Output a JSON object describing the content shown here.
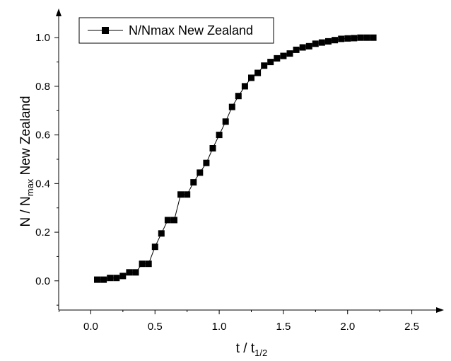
{
  "chart_data": {
    "type": "line",
    "xlabel": {
      "base": "t / t",
      "sub": "1/2"
    },
    "ylabel": {
      "pre": "N / N",
      "sub": "max",
      "post": " New Zealand"
    },
    "xlim": [
      -0.25,
      2.75
    ],
    "ylim": [
      -0.12,
      1.12
    ],
    "xticks": [
      "0.0",
      "0.5",
      "1.0",
      "1.5",
      "2.0",
      "2.5"
    ],
    "yticks": [
      "0.0",
      "0.2",
      "0.4",
      "0.6",
      "0.8",
      "1.0"
    ],
    "legend": {
      "position": "top-left",
      "marker": "square"
    },
    "grid": false,
    "series": [
      {
        "name": "N/Nmax New Zealand",
        "color": "#000000",
        "marker": "square",
        "x": [
          0.05,
          0.1,
          0.15,
          0.2,
          0.25,
          0.3,
          0.35,
          0.4,
          0.45,
          0.5,
          0.55,
          0.6,
          0.65,
          0.7,
          0.75,
          0.8,
          0.85,
          0.9,
          0.95,
          1.0,
          1.05,
          1.1,
          1.15,
          1.2,
          1.25,
          1.3,
          1.35,
          1.4,
          1.45,
          1.5,
          1.55,
          1.6,
          1.65,
          1.7,
          1.75,
          1.8,
          1.85,
          1.9,
          1.95,
          2.0,
          2.05,
          2.1,
          2.15,
          2.2
        ],
        "y": [
          0.005,
          0.005,
          0.012,
          0.012,
          0.02,
          0.035,
          0.035,
          0.07,
          0.07,
          0.14,
          0.195,
          0.25,
          0.25,
          0.355,
          0.355,
          0.405,
          0.445,
          0.485,
          0.545,
          0.6,
          0.655,
          0.715,
          0.76,
          0.8,
          0.835,
          0.855,
          0.885,
          0.9,
          0.915,
          0.925,
          0.935,
          0.95,
          0.96,
          0.965,
          0.975,
          0.98,
          0.985,
          0.99,
          0.995,
          0.997,
          0.998,
          1.0,
          1.0,
          1.0
        ]
      }
    ]
  }
}
